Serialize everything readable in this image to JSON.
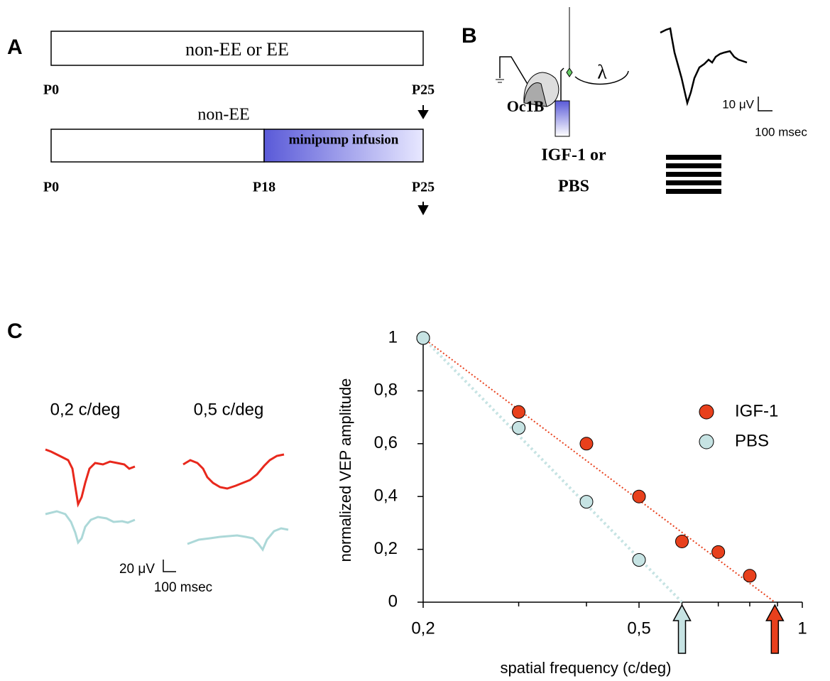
{
  "panel_a": {
    "label": "A",
    "bar1": "non-EE or EE",
    "bar2_title": "non-EE",
    "infusion": "minipump infusion",
    "row1_ticks": [
      "P0",
      "P25"
    ],
    "row2_ticks": [
      "P0",
      "P18",
      "P25"
    ]
  },
  "panel_b": {
    "label": "B",
    "site": "Oc1B",
    "drug_line1": "IGF-1 or",
    "drug_line2": "PBS",
    "lambda": "λ",
    "scale_v": "10 μV",
    "scale_t": "100 msec"
  },
  "panel_c": {
    "label": "C",
    "freq1": "0,2 c/deg",
    "freq2": "0,5 c/deg",
    "scale_v": "20 μV",
    "scale_t": "100 msec"
  },
  "chart_data": {
    "type": "scatter",
    "xlabel": "spatial frequency (c/deg)",
    "ylabel": "normalized VEP amplitude",
    "xscale": "log",
    "xlim": [
      0.2,
      1
    ],
    "ylim": [
      0,
      1
    ],
    "xticks": [
      {
        "value": 0.2,
        "label": "0,2"
      },
      {
        "value": 0.5,
        "label": "0,5"
      },
      1
    ],
    "xminorticks": [
      0.3,
      0.4,
      0.6,
      0.7,
      0.8,
      0.9
    ],
    "yticks": [
      0,
      {
        "value": 0.2,
        "label": "0,2"
      },
      {
        "value": 0.4,
        "label": "0,4"
      },
      {
        "value": 0.6,
        "label": "0,6"
      },
      {
        "value": 0.8,
        "label": "0,8"
      },
      1
    ],
    "legend": "upper right",
    "series": [
      {
        "name": "IGF-1",
        "color": "#e8401c",
        "x": [
          0.2,
          0.3,
          0.4,
          0.5,
          0.6,
          0.7,
          0.8
        ],
        "values": [
          1,
          0.72,
          0.6,
          0.4,
          0.23,
          0.19,
          0.1
        ],
        "fit_end": 0.89
      },
      {
        "name": "PBS",
        "color": "#c6e3e3",
        "x": [
          0.2,
          0.3,
          0.4,
          0.5
        ],
        "values": [
          1,
          0.66,
          0.38,
          0.16
        ],
        "fit_end": 0.6
      }
    ]
  }
}
